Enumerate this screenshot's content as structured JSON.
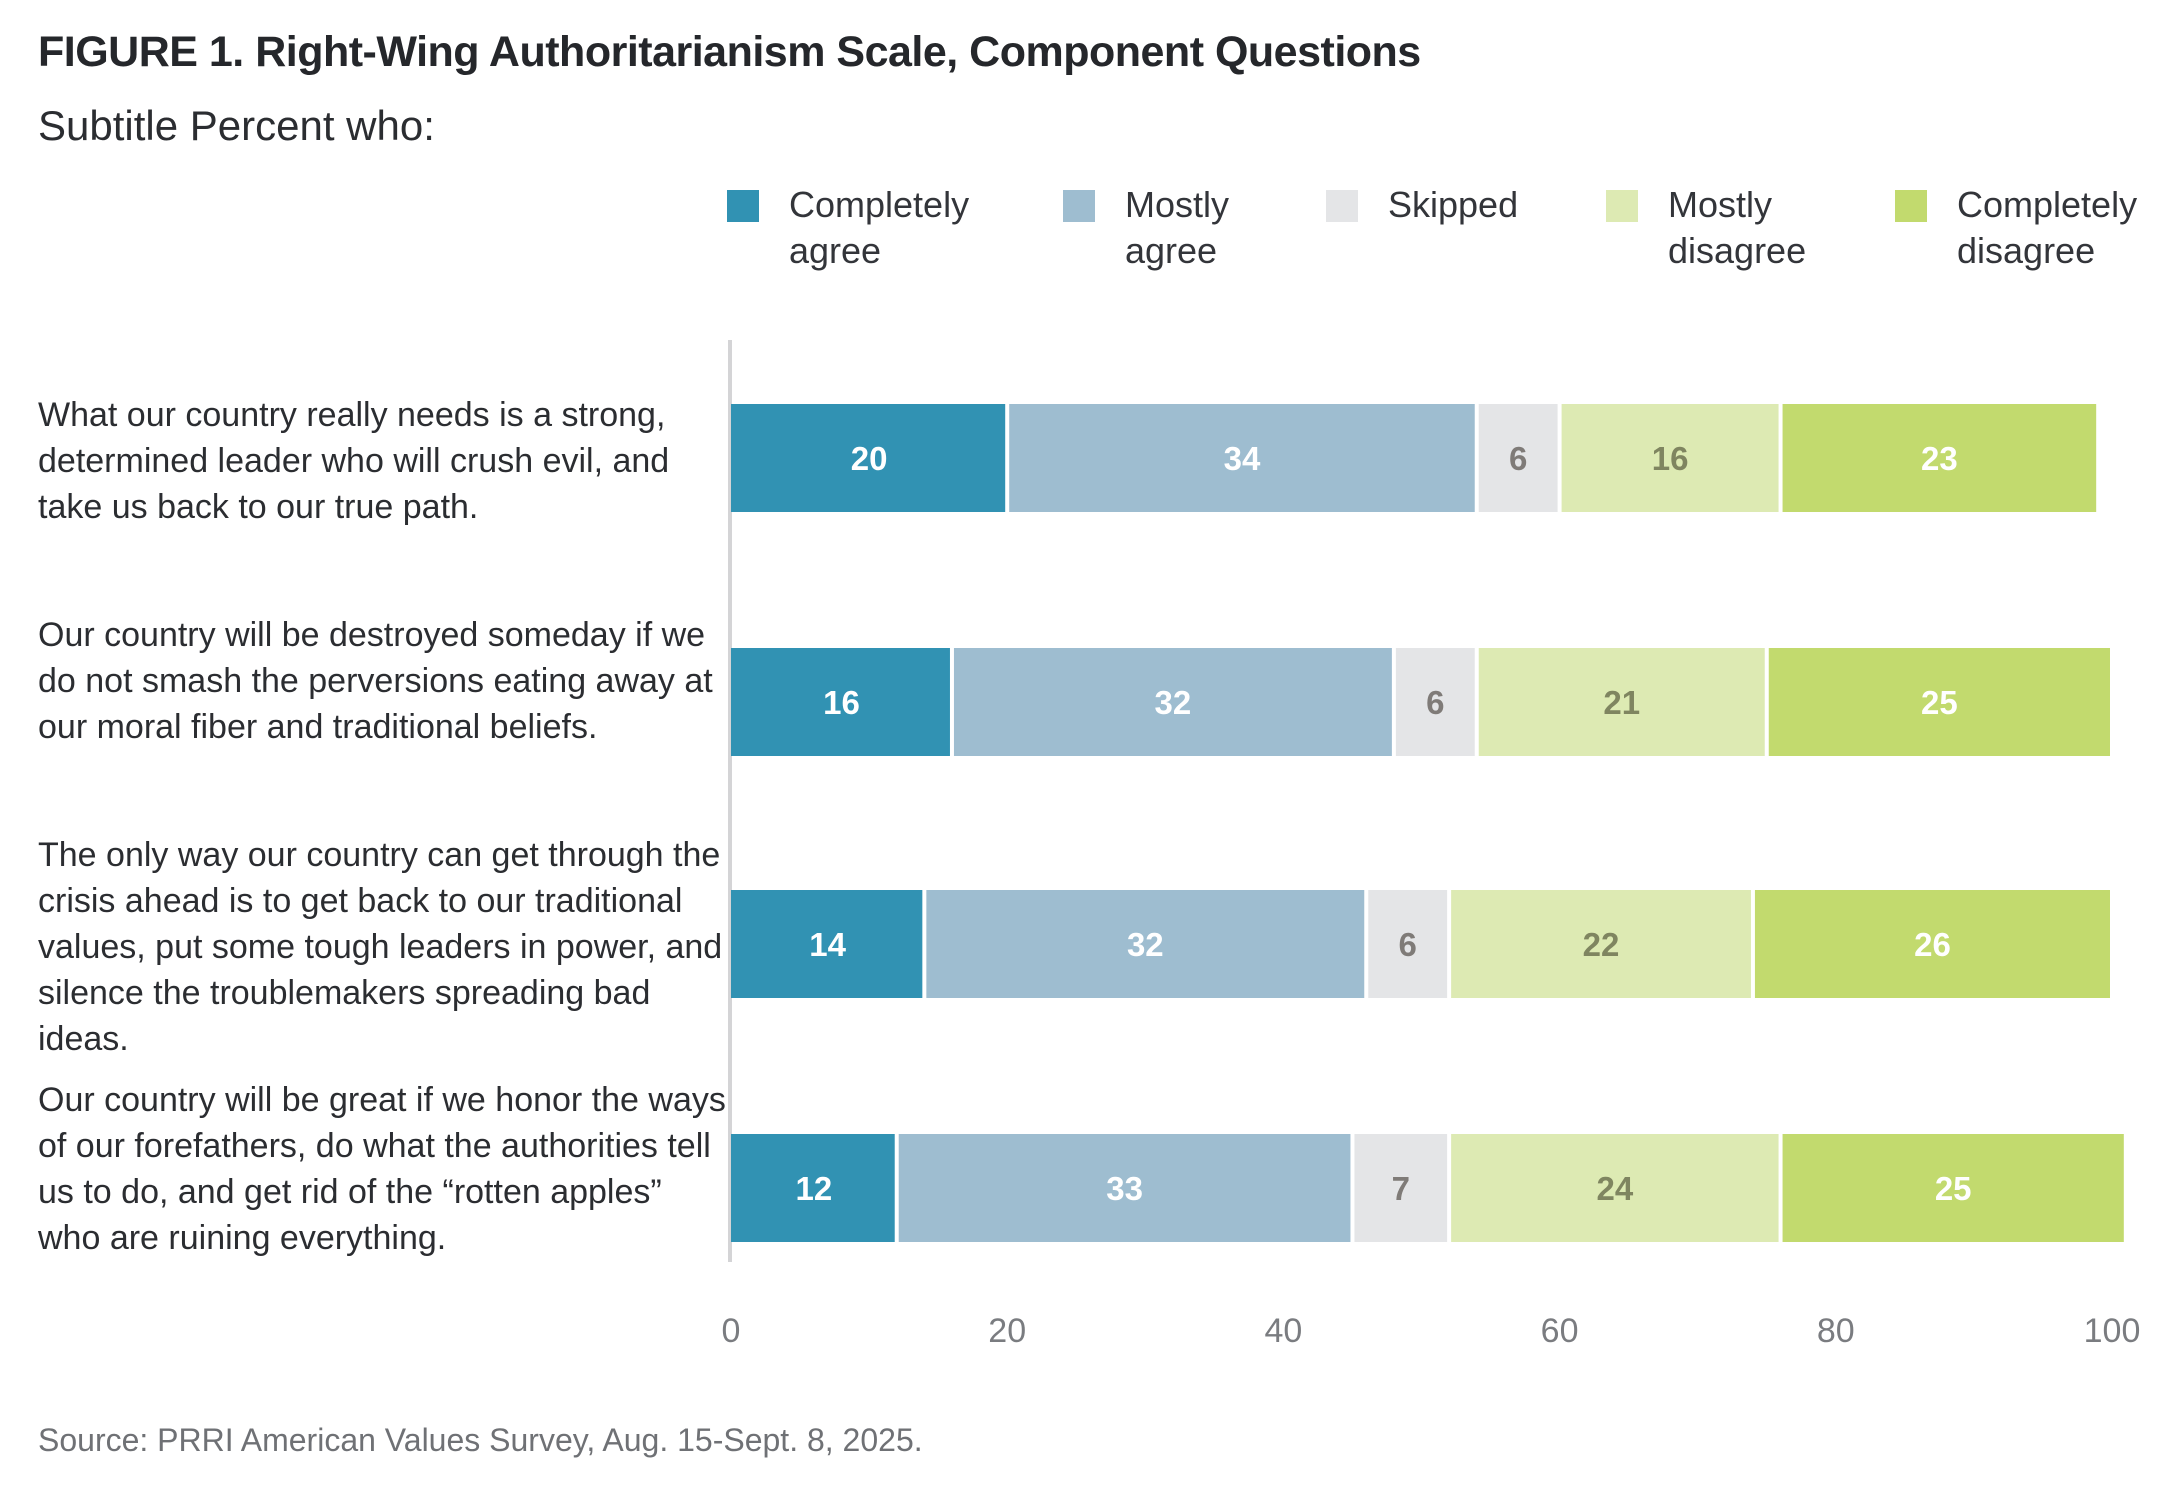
{
  "figure": {
    "title": "FIGURE 1.  Right-Wing Authoritarianism Scale, Component Questions",
    "subtitle": "Subtitle Percent who:",
    "source": "Source: PRRI American Values Survey, Aug. 15-Sept. 8, 2025."
  },
  "chart_data": {
    "type": "bar",
    "orientation": "horizontal",
    "stacked": true,
    "title": "FIGURE 1.  Right-Wing Authoritarianism Scale, Component Questions",
    "subtitle": "Subtitle Percent who:",
    "xlabel": "",
    "ylabel": "",
    "xlim": [
      0,
      100
    ],
    "x_ticks": [
      0,
      20,
      40,
      60,
      80,
      100
    ],
    "grid": false,
    "legend_position": "top-right",
    "categories": [
      "What our country really needs is a strong, determined leader who will crush evil, and take us back to our true path.",
      "Our country will be destroyed someday if we do not smash the perversions eating away at our moral fiber and traditional beliefs.",
      "The only way our country can get through the crisis ahead is to get back to our traditional values, put some tough leaders in power, and silence the troublemakers spreading bad ideas.",
      "Our country will be great if we honor the ways of our forefathers, do what the authorities tell us to do, and get rid of the “rotten apples” who are ruining everything."
    ],
    "series": [
      {
        "name": "Completely agree",
        "legend_label": "Completely\nagree",
        "color": "#3192b3",
        "label_color": "#ffffff",
        "values": [
          20,
          16,
          14,
          12
        ]
      },
      {
        "name": "Mostly agree",
        "legend_label": "Mostly\nagree",
        "color": "#9ebdd0",
        "label_color": "#ffffff",
        "values": [
          34,
          32,
          32,
          33
        ]
      },
      {
        "name": "Skipped",
        "legend_label": "Skipped",
        "color": "#e4e5e7",
        "label_color": "#7f7b78",
        "values": [
          6,
          6,
          6,
          7
        ]
      },
      {
        "name": "Mostly disagree",
        "legend_label": "Mostly\ndisagree",
        "color": "#ddeab3",
        "label_color": "#7f8560",
        "values": [
          16,
          21,
          22,
          24
        ]
      },
      {
        "name": "Completely disagree",
        "legend_label": "Completely\ndisagree",
        "color": "#c2da6e",
        "label_color": "#ffffff",
        "values": [
          23,
          25,
          26,
          25
        ]
      }
    ]
  },
  "style": {
    "axis_color": "#d4d4d6",
    "tick_color": "#7a7c80"
  }
}
